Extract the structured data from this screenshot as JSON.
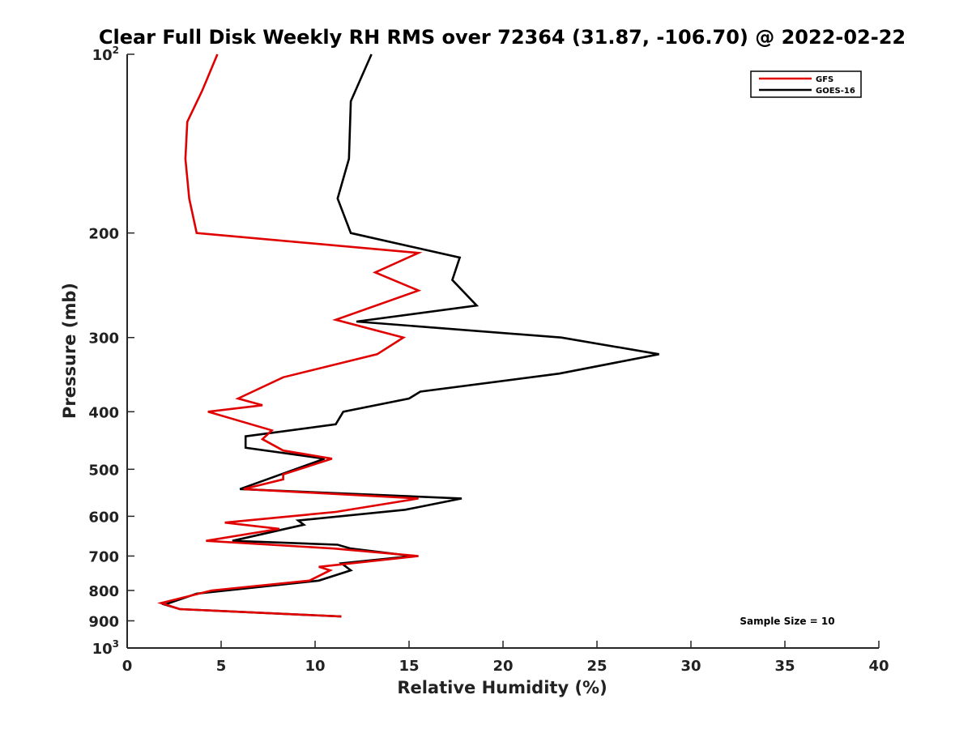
{
  "chart_data": {
    "type": "line",
    "title": "Clear Full Disk Weekly RH RMS over 72364 (31.87, -106.70) @ 2022-02-22",
    "xlabel": "Relative Humidity (%)",
    "ylabel": "Pressure (mb)",
    "xlim": [
      0,
      40
    ],
    "ylim": [
      1000,
      100
    ],
    "y_scale": "log",
    "y_reversed": true,
    "x_ticks": [
      "0",
      "5",
      "10",
      "15",
      "20",
      "25",
      "30",
      "35",
      "40"
    ],
    "y_ticks": [
      {
        "value": 100,
        "base": "10",
        "sup": "2"
      },
      {
        "value": 200,
        "base": "200",
        "sup": ""
      },
      {
        "value": 300,
        "base": "300",
        "sup": ""
      },
      {
        "value": 400,
        "base": "400",
        "sup": ""
      },
      {
        "value": 500,
        "base": "500",
        "sup": ""
      },
      {
        "value": 600,
        "base": "600",
        "sup": ""
      },
      {
        "value": 700,
        "base": "700",
        "sup": ""
      },
      {
        "value": 800,
        "base": "800",
        "sup": ""
      },
      {
        "value": 900,
        "base": "900",
        "sup": ""
      },
      {
        "value": 1000,
        "base": "10",
        "sup": "3"
      }
    ],
    "legend": {
      "position": "top-right"
    },
    "annotation": "Sample Size = 10",
    "grid": false,
    "series": [
      {
        "name": "GFS",
        "color": "#e00000",
        "points": [
          [
            4.8,
            100
          ],
          [
            4.0,
            115
          ],
          [
            3.2,
            130
          ],
          [
            3.1,
            150
          ],
          [
            3.3,
            175
          ],
          [
            3.7,
            200
          ],
          [
            15.5,
            216
          ],
          [
            13.2,
            233
          ],
          [
            15.5,
            250
          ],
          [
            11.1,
            280
          ],
          [
            14.7,
            300
          ],
          [
            13.3,
            320
          ],
          [
            8.3,
            350
          ],
          [
            5.9,
            380
          ],
          [
            7.2,
            390
          ],
          [
            4.3,
            400
          ],
          [
            7.7,
            430
          ],
          [
            7.2,
            445
          ],
          [
            8.3,
            465
          ],
          [
            10.9,
            480
          ],
          [
            8.3,
            510
          ],
          [
            8.3,
            520
          ],
          [
            6.2,
            540
          ],
          [
            15.5,
            560
          ],
          [
            11.1,
            590
          ],
          [
            5.2,
            615
          ],
          [
            8.1,
            630
          ],
          [
            4.2,
            660
          ],
          [
            11.0,
            680
          ],
          [
            15.5,
            700
          ],
          [
            10.2,
            730
          ],
          [
            10.8,
            740
          ],
          [
            9.7,
            770
          ],
          [
            4.5,
            800
          ],
          [
            1.8,
            840
          ],
          [
            2.8,
            860
          ],
          [
            11.4,
            885
          ]
        ]
      },
      {
        "name": "GOES-16",
        "color": "#000000",
        "points": [
          [
            13.0,
            100
          ],
          [
            11.9,
            120
          ],
          [
            11.8,
            150
          ],
          [
            11.2,
            175
          ],
          [
            11.9,
            200
          ],
          [
            17.7,
            220
          ],
          [
            17.3,
            240
          ],
          [
            18.6,
            265
          ],
          [
            12.2,
            282
          ],
          [
            23.1,
            300
          ],
          [
            28.3,
            320
          ],
          [
            23.0,
            345
          ],
          [
            15.6,
            370
          ],
          [
            15.0,
            380
          ],
          [
            11.5,
            400
          ],
          [
            11.1,
            420
          ],
          [
            6.3,
            440
          ],
          [
            6.3,
            460
          ],
          [
            10.5,
            480
          ],
          [
            6.0,
            540
          ],
          [
            17.8,
            560
          ],
          [
            14.8,
            585
          ],
          [
            9.1,
            610
          ],
          [
            9.4,
            620
          ],
          [
            5.6,
            660
          ],
          [
            11.2,
            670
          ],
          [
            11.9,
            680
          ],
          [
            15.2,
            700
          ],
          [
            11.4,
            720
          ],
          [
            11.9,
            740
          ],
          [
            10.2,
            770
          ],
          [
            3.7,
            810
          ],
          [
            2.0,
            845
          ],
          [
            2.8,
            860
          ],
          [
            11.4,
            885
          ]
        ]
      }
    ]
  }
}
